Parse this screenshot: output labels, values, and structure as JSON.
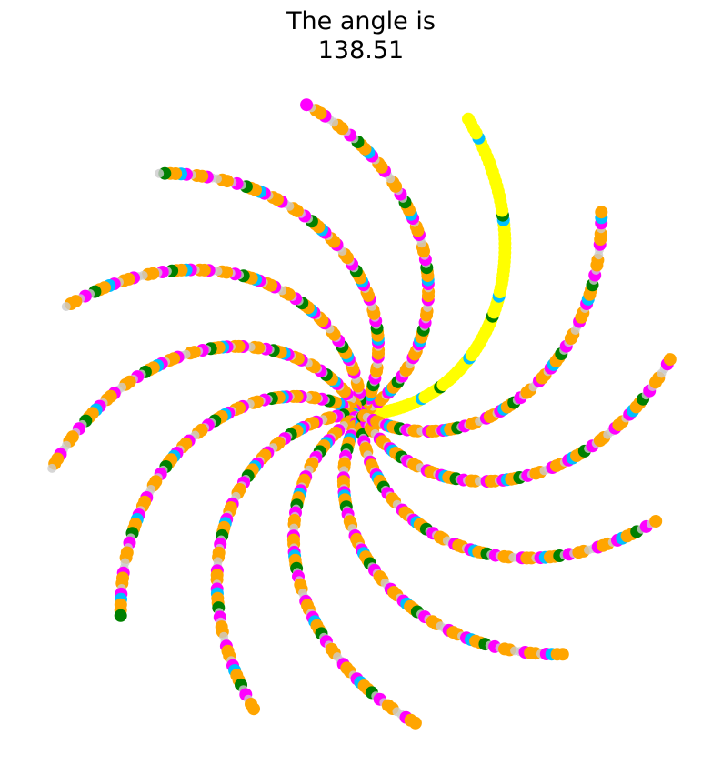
{
  "chart_data": {
    "type": "scatter",
    "title_line1": "The angle is",
    "title_line2": "138.51",
    "axes_visible": false,
    "grid": false,
    "legend": "none",
    "spiral": {
      "arms": 12,
      "points_per_arm": 90,
      "max_radius": 1.0,
      "twist_degrees": 70,
      "base_rotation_degrees": 0,
      "highlighted_arm": 0
    },
    "colors": {
      "background_point": "#cccccc",
      "orange": "#ffa500",
      "magenta": "#ff00ff",
      "cyan": "#00bfff",
      "green": "#008000",
      "highlight": "#ffff00"
    },
    "color_pattern": [
      "orange",
      "orange",
      "magenta",
      "grey",
      "orange",
      "grey",
      "magenta",
      "orange",
      "grey",
      "cyan",
      "orange",
      "grey",
      "magenta",
      "orange",
      "green",
      "grey"
    ]
  }
}
